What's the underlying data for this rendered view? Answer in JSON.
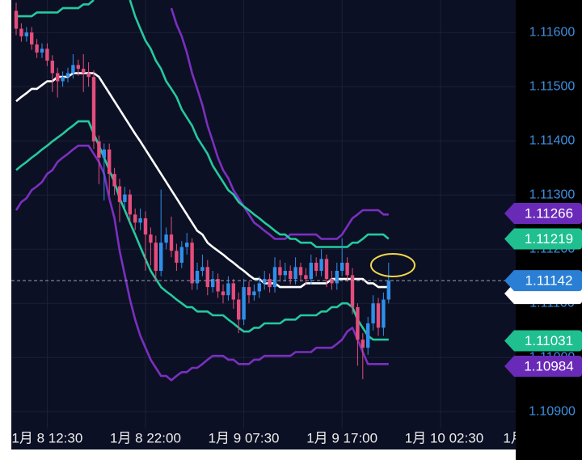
{
  "chart_data": {
    "type": "candlestick",
    "categories": [
      null,
      null,
      null,
      null,
      null,
      null,
      "1月 8 12:30",
      null,
      null,
      null,
      null,
      null,
      null,
      null,
      null,
      null,
      null,
      null,
      null,
      null,
      null,
      null,
      null,
      null,
      null,
      "1月 8 22:00",
      null,
      null,
      null,
      null,
      null,
      null,
      null,
      null,
      null,
      null,
      null,
      null,
      null,
      null,
      null,
      null,
      null,
      null,
      "1月 9 07:30",
      null,
      null,
      null,
      null,
      null,
      null,
      null,
      null,
      null,
      null,
      null,
      null,
      null,
      null,
      null,
      null,
      null,
      null,
      "1月 9 17:00",
      null,
      null,
      null,
      null,
      null,
      null,
      null,
      null,
      null,
      null,
      null,
      null,
      null,
      null,
      null,
      null,
      null,
      null,
      "1月 10 02:30",
      null,
      null,
      null,
      null,
      null,
      null,
      null,
      null,
      null,
      null,
      null,
      null,
      null,
      null,
      null,
      null,
      null,
      null,
      "1月"
    ],
    "open": [
      1.1164,
      1.11607,
      1.11593,
      1.116,
      1.11578,
      1.11563,
      1.1157,
      1.11548,
      1.11525,
      1.1151,
      1.11518,
      1.11525,
      1.1154,
      1.11533,
      1.11525,
      1.11518,
      1.11399,
      1.11369,
      1.11384,
      1.11339,
      1.11316,
      1.11287,
      1.11301,
      1.11264,
      1.11249,
      1.11257,
      1.11227,
      1.11212,
      1.1116,
      1.11212,
      1.11227,
      1.11197,
      1.11175,
      1.11204,
      1.11212,
      1.11137,
      1.1116,
      1.11167,
      1.1113,
      1.11145,
      1.11122,
      1.11115,
      1.11137,
      1.11107,
      1.1107,
      1.1113,
      1.11115,
      1.11122,
      1.11137,
      1.11145,
      1.1113,
      1.11167,
      1.11152,
      1.1116,
      1.11145,
      1.11167,
      1.11152,
      1.11145,
      1.11175,
      1.1116,
      1.11182,
      1.11145,
      1.11137,
      1.1116,
      1.11175,
      1.11152,
      1.11093,
      1.11033,
      1.11018,
      1.11063,
      1.111,
      1.11055,
      1.11107,
      null,
      null,
      null,
      null,
      null,
      null,
      null,
      null,
      null,
      null,
      null,
      null,
      null,
      null,
      null,
      null,
      null,
      null,
      null,
      null,
      null,
      null,
      null,
      null,
      null,
      null,
      null,
      null,
      null
    ],
    "high": [
      1.11655,
      1.11617,
      1.1161,
      1.1161,
      1.11588,
      1.1158,
      1.1158,
      1.11558,
      1.11535,
      1.11528,
      1.11535,
      1.1156,
      1.1155,
      1.1156,
      1.11545,
      1.1153,
      1.1141,
      1.11395,
      1.11395,
      1.1135,
      1.1133,
      1.11315,
      1.1131,
      1.11275,
      1.11275,
      1.1127,
      1.1124,
      1.11225,
      1.1131,
      1.1124,
      1.1126,
      1.1121,
      1.11215,
      1.1123,
      1.1122,
      1.11175,
      1.1119,
      1.1118,
      1.1116,
      1.11155,
      1.11135,
      1.1115,
      1.11145,
      1.1112,
      1.11145,
      1.1114,
      1.11135,
      1.1115,
      1.1116,
      1.11155,
      1.11185,
      1.1118,
      1.11175,
      1.1117,
      1.11185,
      1.11175,
      1.11165,
      1.1119,
      1.11185,
      1.112,
      1.1119,
      1.1116,
      1.11175,
      1.1122,
      1.11185,
      1.11165,
      1.111,
      1.11045,
      1.11075,
      1.11115,
      1.1111,
      1.1112,
      1.11175,
      null,
      null,
      null,
      null,
      null,
      null,
      null,
      null,
      null,
      null,
      null,
      null,
      null,
      null,
      null,
      null,
      null,
      null,
      null,
      null,
      null,
      null,
      null,
      null,
      null,
      null,
      null,
      null,
      null
    ],
    "low": [
      1.11595,
      1.11583,
      1.11583,
      1.11568,
      1.11553,
      1.11553,
      1.11538,
      1.1149,
      1.1148,
      1.115,
      1.11508,
      1.11515,
      1.1152,
      1.1149,
      1.115,
      1.11385,
      1.1132,
      1.1129,
      1.113,
      1.113,
      1.1125,
      1.11275,
      1.1125,
      1.11235,
      1.11235,
      1.1116,
      1.1117,
      1.1114,
      1.1115,
      1.112,
      1.11185,
      1.1116,
      1.11165,
      1.1119,
      1.11125,
      1.11125,
      1.1115,
      1.11115,
      1.1112,
      1.1111,
      1.111,
      1.11105,
      1.1109,
      1.11045,
      1.1106,
      1.111,
      1.11105,
      1.1111,
      1.11125,
      1.1112,
      1.1112,
      1.1114,
      1.1114,
      1.11135,
      1.11135,
      1.1114,
      1.11135,
      1.11135,
      1.1115,
      1.1115,
      1.1113,
      1.11125,
      1.11125,
      1.1115,
      1.1114,
      1.1108,
      1.10985,
      1.1096,
      1.11005,
      1.1105,
      1.1104,
      1.1104,
      1.111,
      null,
      null,
      null,
      null,
      null,
      null,
      null,
      null,
      null,
      null,
      null,
      null,
      null,
      null,
      null,
      null,
      null,
      null,
      null,
      null,
      null,
      null,
      null,
      null,
      null,
      null,
      null,
      null,
      null
    ],
    "close": [
      1.11607,
      1.11593,
      1.116,
      1.11578,
      1.11563,
      1.1157,
      1.11548,
      1.11525,
      1.1151,
      1.11518,
      1.11525,
      1.1154,
      1.11533,
      1.11525,
      1.11518,
      1.11399,
      1.11369,
      1.11384,
      1.11339,
      1.11316,
      1.11287,
      1.11301,
      1.11264,
      1.11249,
      1.11257,
      1.11227,
      1.11212,
      1.1116,
      1.11212,
      1.11227,
      1.11197,
      1.11175,
      1.11204,
      1.11212,
      1.11137,
      1.1116,
      1.11167,
      1.1113,
      1.11145,
      1.11122,
      1.11115,
      1.11137,
      1.11107,
      1.1107,
      1.1113,
      1.11115,
      1.11122,
      1.11137,
      1.11145,
      1.1113,
      1.11167,
      1.11152,
      1.1116,
      1.11145,
      1.11167,
      1.11152,
      1.11145,
      1.11175,
      1.1116,
      1.11182,
      1.11145,
      1.11137,
      1.1116,
      1.11175,
      1.11152,
      1.11093,
      1.11033,
      1.11018,
      1.11063,
      1.111,
      1.11055,
      1.11107,
      1.11142,
      null,
      null,
      null,
      null,
      null,
      null,
      null,
      null,
      null,
      null,
      null,
      null,
      null,
      null,
      null,
      null,
      null,
      null,
      null,
      null,
      null,
      null,
      null,
      null,
      null,
      null,
      null,
      null,
      null
    ],
    "up_color": "#2f8fea",
    "down_color": "#e44d7c",
    "lines": [
      {
        "color": "#7b2fc0",
        "values": [
          null,
          null,
          null,
          null,
          null,
          null,
          null,
          null,
          null,
          null,
          null,
          null,
          null,
          null,
          null,
          null,
          null,
          null,
          null,
          null,
          null,
          null,
          null,
          null,
          null,
          null,
          null,
          null,
          null,
          null,
          1.11645,
          1.11615,
          1.11593,
          1.11563,
          1.11525,
          1.11496,
          1.11466,
          1.11428,
          1.11399,
          1.11369,
          1.11346,
          1.11331,
          1.11309,
          1.11294,
          1.11279,
          1.11264,
          1.11249,
          1.11242,
          1.11234,
          1.11227,
          1.11219,
          1.11219,
          1.11219,
          1.11227,
          1.11227,
          1.11227,
          1.11227,
          1.11227,
          1.11227,
          1.11219,
          1.11219,
          1.11219,
          1.11219,
          1.11227,
          1.11242,
          1.11257,
          1.11264,
          1.11272,
          1.11272,
          1.11272,
          1.11272,
          1.11264,
          1.11264,
          null,
          null,
          null,
          null,
          null,
          null,
          null,
          null,
          null,
          null,
          null,
          null,
          null,
          null,
          null,
          null,
          null,
          null,
          null,
          null,
          null,
          null,
          null,
          null,
          null,
          null,
          null,
          null,
          null
        ]
      },
      {
        "color": "#25c99e",
        "values": [
          1.1163,
          1.1163,
          1.1163,
          1.1163,
          1.11637,
          1.11637,
          1.11637,
          1.11637,
          1.11637,
          1.11645,
          1.11645,
          1.11645,
          1.11645,
          1.11652,
          1.11652,
          1.1166,
          null,
          null,
          null,
          null,
          null,
          null,
          1.1166,
          1.1163,
          1.11607,
          1.11585,
          1.1157,
          1.11548,
          1.11533,
          1.1151,
          1.11496,
          1.11481,
          1.11458,
          1.11443,
          1.11428,
          1.11406,
          1.11391,
          1.11376,
          1.11354,
          1.11339,
          1.11324,
          1.11309,
          1.11301,
          1.11287,
          1.11279,
          1.11272,
          1.11264,
          1.11257,
          1.11249,
          1.11242,
          1.11234,
          1.11227,
          1.11227,
          1.11219,
          1.11219,
          1.11212,
          1.11212,
          1.11212,
          1.11204,
          1.11204,
          1.11204,
          1.11204,
          1.11204,
          1.11204,
          1.11204,
          1.11212,
          1.11212,
          1.11219,
          1.11227,
          1.11227,
          1.11227,
          1.11227,
          1.11219,
          null,
          null,
          null,
          null,
          null,
          null,
          null,
          null,
          null,
          null,
          null,
          null,
          null,
          null,
          null,
          null,
          null,
          null,
          null,
          null,
          null,
          null,
          null,
          null,
          null,
          null,
          null,
          null,
          null
        ]
      },
      {
        "color": "#ffffff",
        "values": [
          1.11473,
          1.11481,
          1.11488,
          1.11496,
          1.11496,
          1.11503,
          1.1151,
          1.1151,
          1.11518,
          1.11518,
          1.11518,
          1.11525,
          1.11525,
          1.11525,
          1.11525,
          1.11525,
          1.11518,
          1.11503,
          1.11488,
          1.11473,
          1.11458,
          1.11443,
          1.11428,
          1.11413,
          1.11399,
          1.11384,
          1.11369,
          1.11354,
          1.11339,
          1.11324,
          1.11309,
          1.11294,
          1.11279,
          1.11264,
          1.11249,
          1.11234,
          1.11227,
          1.11212,
          1.11204,
          1.11197,
          1.1119,
          1.11182,
          1.11175,
          1.11167,
          1.1116,
          1.11152,
          1.11145,
          1.11145,
          1.11137,
          1.11137,
          1.11137,
          1.1113,
          1.1113,
          1.1113,
          1.1113,
          1.1113,
          1.11137,
          1.11137,
          1.11137,
          1.11137,
          1.11137,
          1.11145,
          1.11145,
          1.11145,
          1.11145,
          1.11145,
          1.11145,
          1.11145,
          1.11137,
          1.11137,
          1.1113,
          1.1113,
          1.1113,
          null,
          null,
          null,
          null,
          null,
          null,
          null,
          null,
          null,
          null,
          null,
          null,
          null,
          null,
          null,
          null,
          null,
          null,
          null,
          null,
          null,
          null,
          null,
          null,
          null,
          null,
          null,
          null,
          null
        ]
      },
      {
        "color": "#25c99e",
        "values": [
          1.11346,
          1.11354,
          1.11361,
          1.11369,
          1.11376,
          1.11384,
          1.11391,
          1.11399,
          1.11406,
          1.11413,
          1.11421,
          1.11428,
          1.11436,
          1.11436,
          1.11436,
          1.11413,
          1.11391,
          1.11369,
          1.11346,
          1.11324,
          1.11294,
          1.11272,
          1.11249,
          1.11227,
          1.11204,
          1.11182,
          1.1116,
          1.11145,
          1.1113,
          1.11122,
          1.11115,
          1.11107,
          1.111,
          1.11093,
          1.11093,
          1.11085,
          1.11085,
          1.11085,
          1.11078,
          1.11078,
          1.11078,
          1.1107,
          1.11063,
          1.11055,
          1.11048,
          1.11048,
          1.11055,
          1.11055,
          1.11063,
          1.11063,
          1.11063,
          1.11063,
          1.1107,
          1.1107,
          1.1107,
          1.11078,
          1.11078,
          1.11078,
          1.11078,
          1.11085,
          1.11085,
          1.11093,
          1.11093,
          1.111,
          1.111,
          1.11093,
          1.1107,
          1.11055,
          1.1104,
          1.11033,
          1.11033,
          1.11033,
          1.11033,
          null,
          null,
          null,
          null,
          null,
          null,
          null,
          null,
          null,
          null,
          null,
          null,
          null,
          null,
          null,
          null,
          null,
          null,
          null,
          null,
          null,
          null,
          null,
          null,
          null,
          null,
          null,
          null,
          null
        ]
      },
      {
        "color": "#7b2fc0",
        "values": [
          1.11272,
          1.11287,
          1.11294,
          1.11309,
          1.11316,
          1.11324,
          1.11339,
          1.11346,
          1.11361,
          1.11369,
          1.11376,
          1.11384,
          1.11391,
          1.11391,
          1.11391,
          1.11376,
          1.11361,
          1.11339,
          1.11294,
          1.11257,
          1.11197,
          1.11152,
          1.11107,
          1.1107,
          1.1104,
          1.11018,
          1.10996,
          1.10981,
          1.10966,
          1.10966,
          1.10958,
          1.10966,
          1.10973,
          1.10973,
          1.10981,
          1.10981,
          1.10988,
          1.10996,
          1.11003,
          1.11003,
          1.11003,
          1.10996,
          1.10996,
          1.10988,
          1.10988,
          1.10988,
          1.10996,
          1.10996,
          1.11003,
          1.11003,
          1.11003,
          1.11003,
          1.11003,
          1.11003,
          1.1101,
          1.1101,
          1.1101,
          1.1101,
          1.11018,
          1.11018,
          1.11018,
          1.11018,
          1.11025,
          1.11033,
          1.11048,
          1.11055,
          1.11033,
          1.1101,
          1.10988,
          1.10988,
          1.10988,
          1.10988,
          1.10988,
          null,
          null,
          null,
          null,
          null,
          null,
          null,
          null,
          null,
          null,
          null,
          null,
          null,
          null,
          null,
          null,
          null,
          null,
          null,
          null,
          null,
          null,
          null,
          null,
          null,
          null,
          null,
          null,
          null
        ]
      }
    ],
    "ylim": [
      1.10869,
      1.1166
    ],
    "yticks": [
      {
        "value": 1.109,
        "label": "1.10900"
      },
      {
        "value": 1.11,
        "label": "1.11000"
      },
      {
        "value": 1.111,
        "label": "1.11100"
      },
      {
        "value": 1.112,
        "label": "1.11200"
      },
      {
        "value": 1.113,
        "label": "1.11300"
      },
      {
        "value": 1.114,
        "label": "1.11400"
      },
      {
        "value": 1.115,
        "label": "1.11500"
      },
      {
        "value": 1.116,
        "label": "1.11600"
      }
    ],
    "grid": true,
    "price_tags": [
      {
        "value": 1.11266,
        "color": "#6a2ab8"
      },
      {
        "value": 1.11219,
        "color": "#1fbf8f"
      },
      {
        "value": 1.11142,
        "color": "#2a7fd4"
      },
      {
        "value": 1.11031,
        "color": "#1fbf8f"
      },
      {
        "value": 1.10984,
        "color": "#6a2ab8"
      }
    ],
    "current_tag": 2,
    "band_tag_line": 2
  }
}
